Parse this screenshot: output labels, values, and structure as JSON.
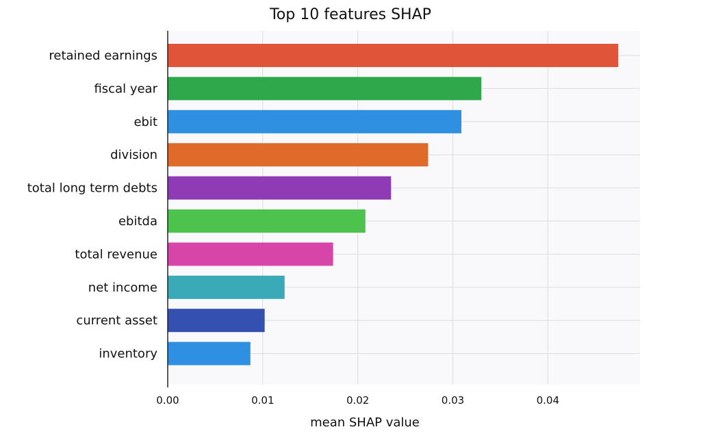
{
  "chart_data": {
    "type": "bar",
    "orientation": "horizontal",
    "title": "Top 10 features SHAP",
    "xlabel": "mean SHAP value",
    "ylabel": "",
    "categories": [
      "retained earnings",
      "fiscal year",
      "ebit",
      "division",
      "total long term debts",
      "ebitda",
      "total revenue",
      "net income",
      "current asset",
      "inventory"
    ],
    "values": [
      0.0474,
      0.033,
      0.0309,
      0.0274,
      0.0235,
      0.0208,
      0.0174,
      0.0123,
      0.0102,
      0.0087
    ],
    "colors": [
      "#e0553a",
      "#2ea84a",
      "#2f8fe0",
      "#e06a2a",
      "#8e3bb5",
      "#4cc34c",
      "#d845a8",
      "#3aa9b8",
      "#3450b0",
      "#2f8fe0"
    ],
    "xlim": [
      0,
      0.0497
    ],
    "xticks": [
      "0.00",
      "0.01",
      "0.02",
      "0.03",
      "0.04"
    ],
    "xtick_values": [
      0,
      0.01,
      0.02,
      0.03,
      0.04
    ],
    "grid": true,
    "legend": "none"
  }
}
